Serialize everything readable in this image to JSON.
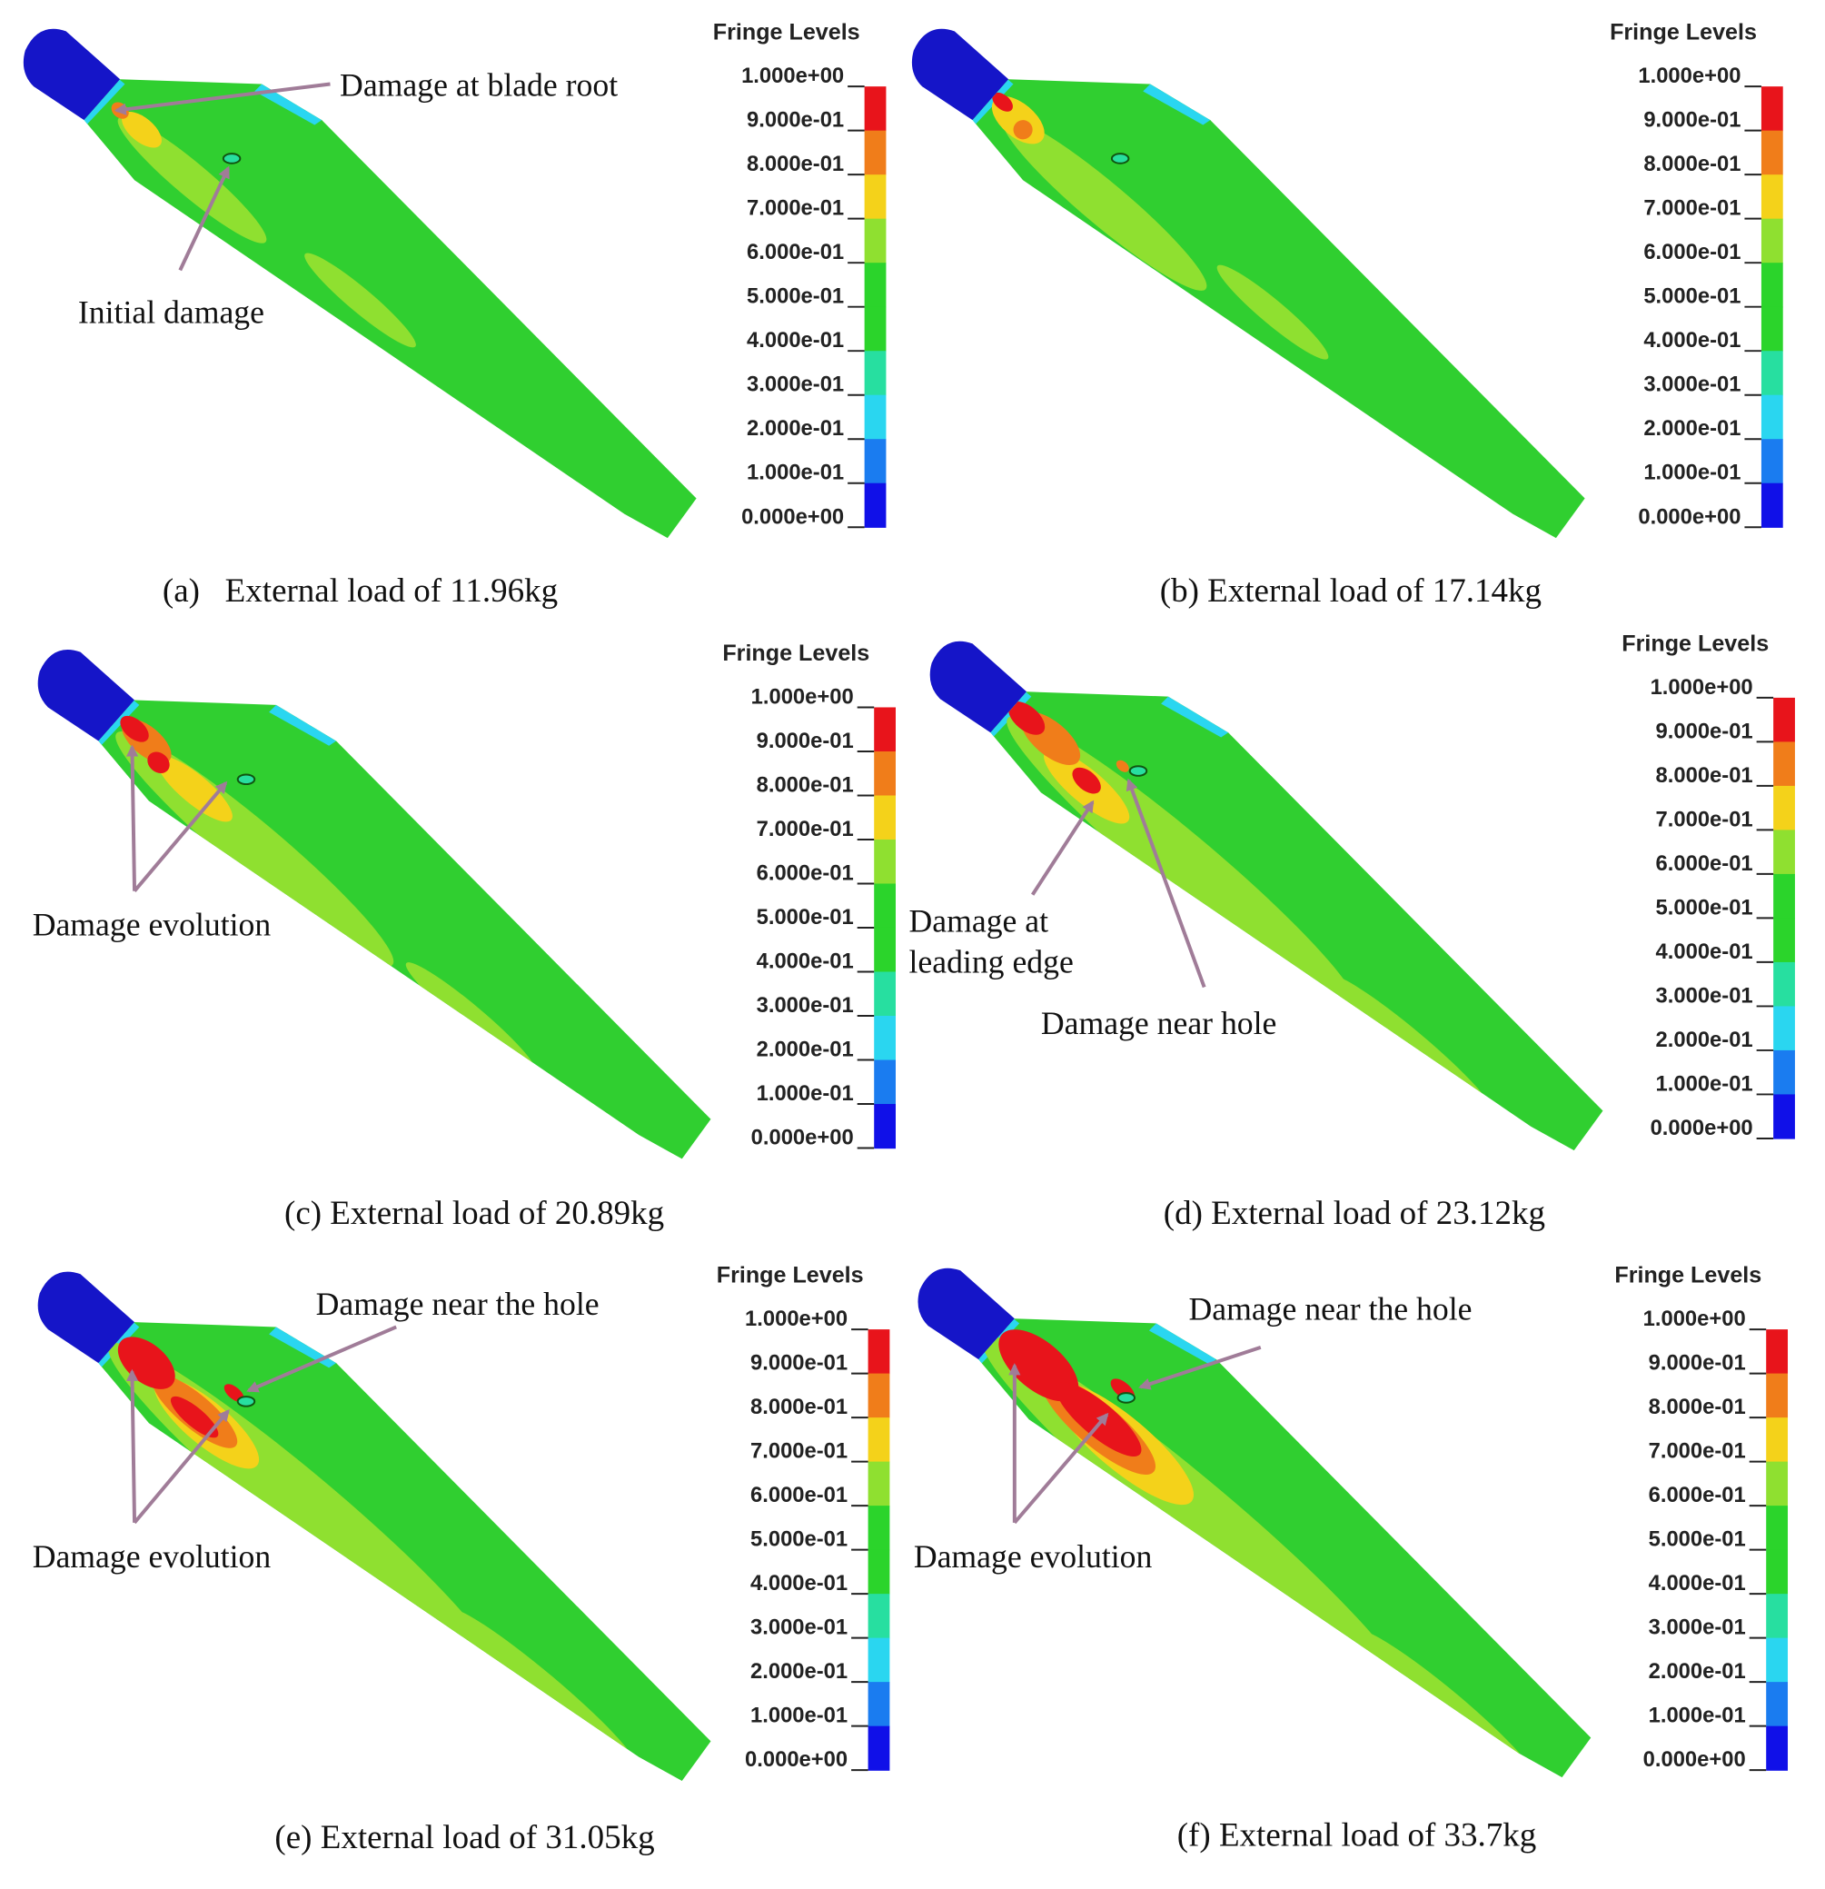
{
  "panels": [
    {
      "caption": "(a)   External load of 11.96kg",
      "legend_title": "Fringe Levels",
      "legend_levels": [
        "1.000e+00",
        "9.000e-01",
        "8.000e-01",
        "7.000e-01",
        "6.000e-01",
        "5.000e-01",
        "4.000e-01",
        "3.000e-01",
        "2.000e-01",
        "1.000e-01",
        "0.000e+00"
      ],
      "annotations": [
        {
          "text": "Damage at blade root"
        },
        {
          "text": "Initial damage"
        }
      ]
    },
    {
      "caption": "(b) External load of 17.14kg",
      "legend_title": "Fringe Levels",
      "legend_levels": [
        "1.000e+00",
        "9.000e-01",
        "8.000e-01",
        "7.000e-01",
        "6.000e-01",
        "5.000e-01",
        "4.000e-01",
        "3.000e-01",
        "2.000e-01",
        "1.000e-01",
        "0.000e+00"
      ],
      "annotations": []
    },
    {
      "caption": "(c) External load of 20.89kg",
      "legend_title": "Fringe Levels",
      "legend_levels": [
        "1.000e+00",
        "9.000e-01",
        "8.000e-01",
        "7.000e-01",
        "6.000e-01",
        "5.000e-01",
        "4.000e-01",
        "3.000e-01",
        "2.000e-01",
        "1.000e-01",
        "0.000e+00"
      ],
      "annotations": [
        {
          "text": "Damage evolution"
        }
      ]
    },
    {
      "caption": "(d) External load of 23.12kg",
      "legend_title": "Fringe Levels",
      "legend_levels": [
        "1.000e+00",
        "9.000e-01",
        "8.000e-01",
        "7.000e-01",
        "6.000e-01",
        "5.000e-01",
        "4.000e-01",
        "3.000e-01",
        "2.000e-01",
        "1.000e-01",
        "0.000e+00"
      ],
      "annotations": [
        {
          "lines": [
            "Damage at",
            "leading edge"
          ]
        },
        {
          "text": "Damage near hole"
        }
      ]
    },
    {
      "caption": "(e) External load of 31.05kg",
      "legend_title": "Fringe Levels",
      "legend_levels": [
        "1.000e+00",
        "9.000e-01",
        "8.000e-01",
        "7.000e-01",
        "6.000e-01",
        "5.000e-01",
        "4.000e-01",
        "3.000e-01",
        "2.000e-01",
        "1.000e-01",
        "0.000e+00"
      ],
      "annotations": [
        {
          "text": "Damage near the hole"
        },
        {
          "text": "Damage evolution"
        }
      ]
    },
    {
      "caption": "(f) External load of 33.7kg",
      "legend_title": "Fringe Levels",
      "legend_levels": [
        "1.000e+00",
        "9.000e-01",
        "8.000e-01",
        "7.000e-01",
        "6.000e-01",
        "5.000e-01",
        "4.000e-01",
        "3.000e-01",
        "2.000e-01",
        "1.000e-01",
        "0.000e+00"
      ],
      "annotations": [
        {
          "text": "Damage near the hole"
        },
        {
          "text": "Damage evolution"
        }
      ]
    }
  ]
}
